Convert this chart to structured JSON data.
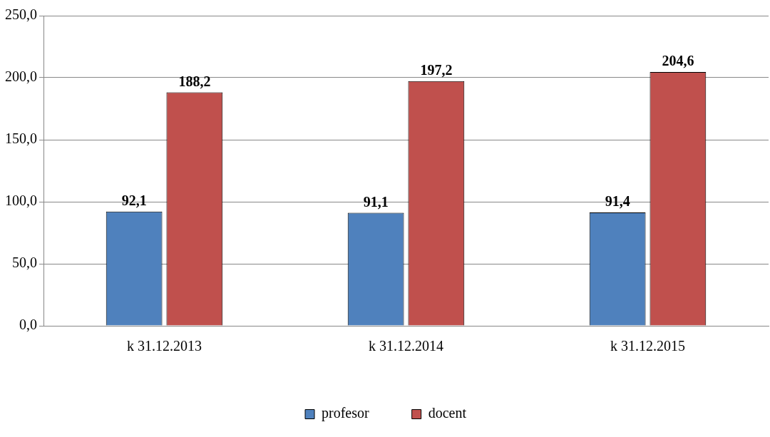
{
  "chart_data": {
    "type": "bar",
    "categories": [
      "k 31.12.2013",
      "k 31.12.2014",
      "k 31.12.2015"
    ],
    "series": [
      {
        "name": "profesor",
        "color": "#4f81bd",
        "values": [
          92.1,
          91.1,
          91.4
        ],
        "value_labels": [
          "92,1",
          "91,1",
          "91,4"
        ]
      },
      {
        "name": "docent",
        "color": "#c0504d",
        "values": [
          188.2,
          197.2,
          204.6
        ],
        "value_labels": [
          "188,2",
          "197,2",
          "204,6"
        ]
      }
    ],
    "ylim": [
      0,
      250
    ],
    "yticks": [
      {
        "value": 0,
        "label": "0,0"
      },
      {
        "value": 50,
        "label": "50,0"
      },
      {
        "value": 100,
        "label": "100,0"
      },
      {
        "value": 150,
        "label": "150,0"
      },
      {
        "value": 200,
        "label": "200,0"
      },
      {
        "value": 250,
        "label": "250,0"
      }
    ],
    "grid": "y",
    "legend": "bottom"
  }
}
